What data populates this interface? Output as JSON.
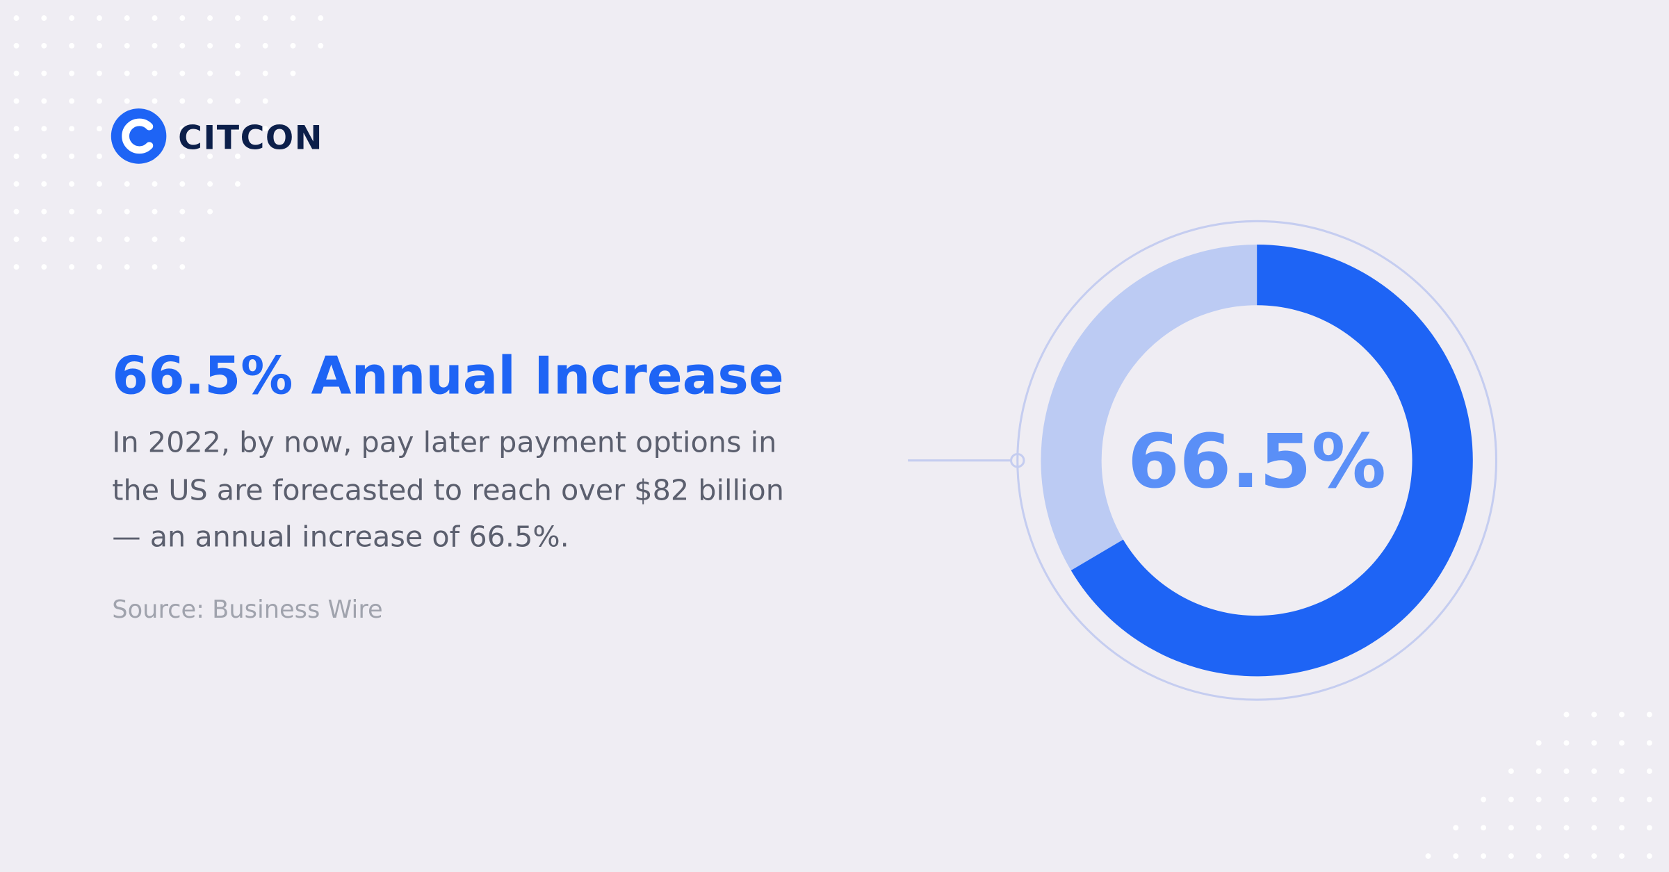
{
  "logo": "CITCON",
  "headline": "66.5% Annual Increase",
  "body": [
    "In 2022, by now, pay later payment options in",
    "the US are forecasted to reach over $82 billion",
    "— an annual increase of 66.5%."
  ],
  "source": "Source: Business Wire",
  "chart_data": {
    "type": "donut",
    "values": [
      66.5,
      33.5
    ],
    "colors": [
      "#1e64f5",
      "#bccbf3"
    ],
    "center_label": "66.5%"
  }
}
